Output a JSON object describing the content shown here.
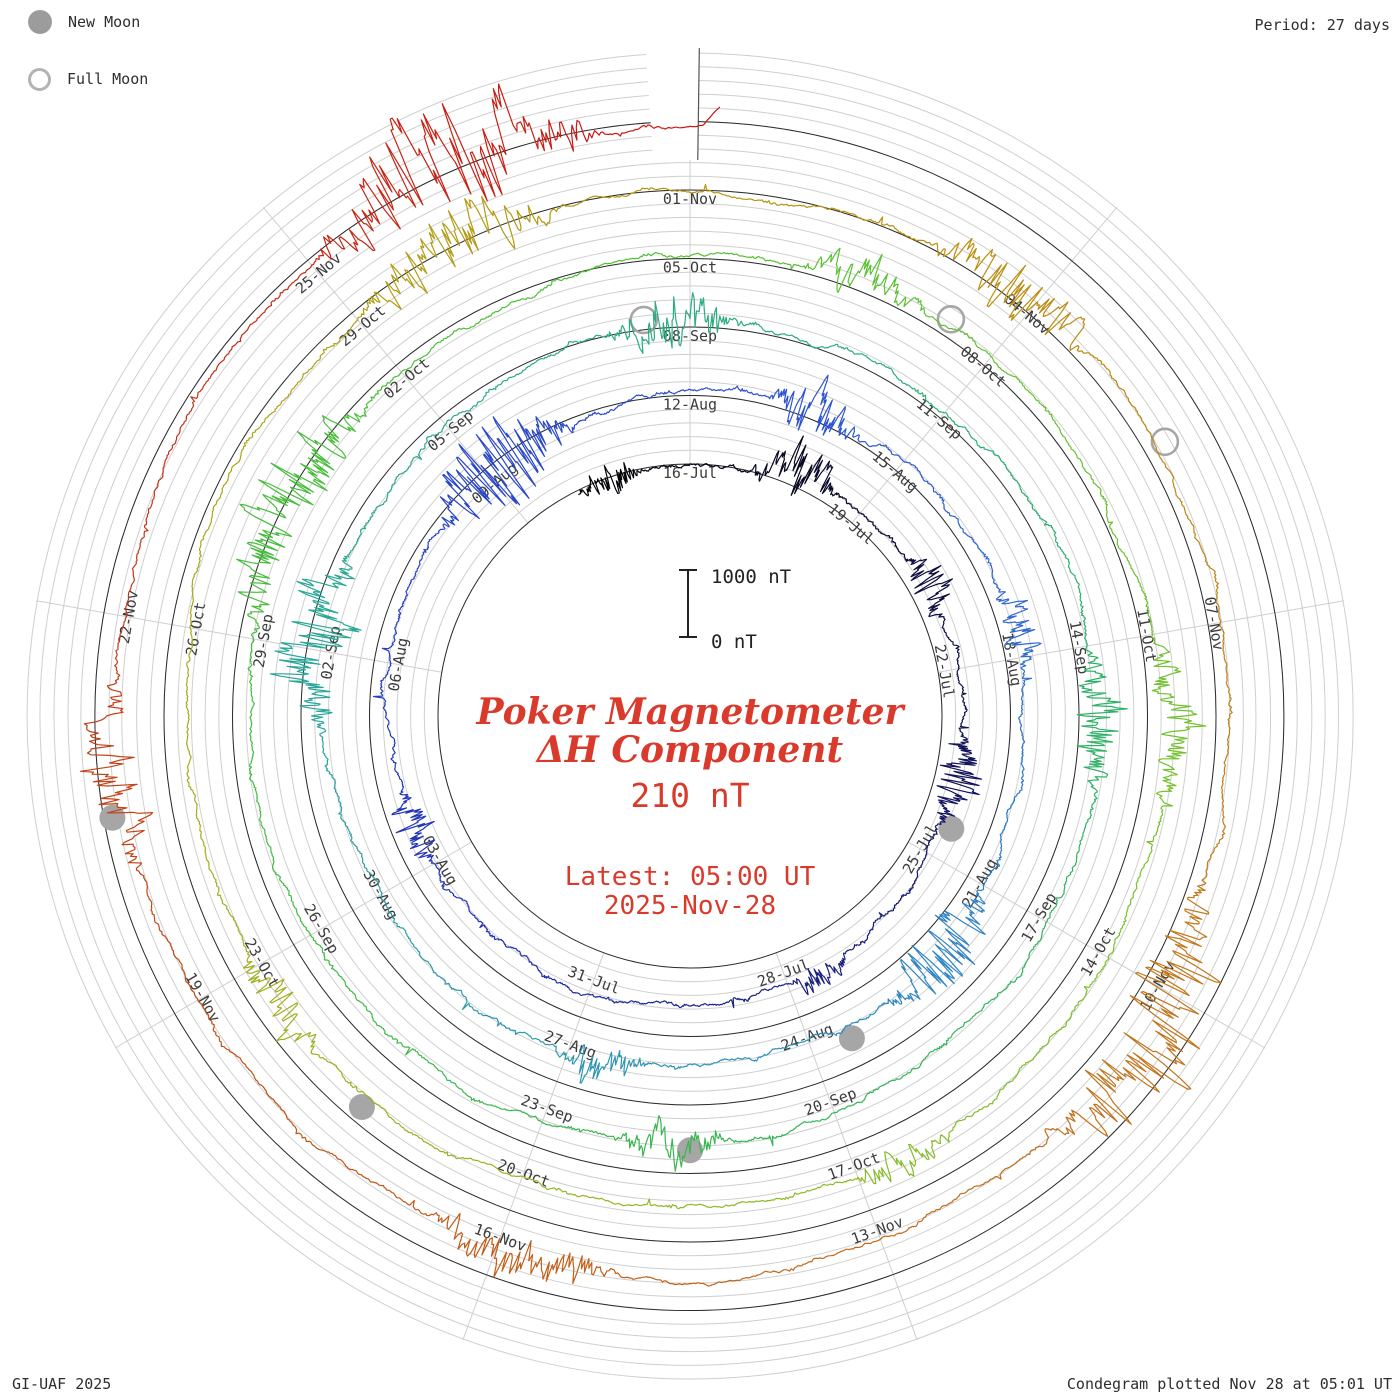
{
  "header": {
    "period": "Period: 27 days"
  },
  "legend": {
    "new_moon": "New Moon",
    "full_moon": "Full Moon"
  },
  "center": {
    "title_line1": "Poker Magnetometer",
    "title_line2": "ΔH Component",
    "current_value": "210 nT",
    "latest_line1": "Latest: 05:00 UT",
    "latest_line2": "2025-Nov-28"
  },
  "scale_bar": {
    "top": "1000 nT",
    "bottom": "0 nT"
  },
  "footer": {
    "left": "GI-UAF 2025",
    "right": "Condegram plotted Nov 28 at 05:01 UT"
  },
  "colors": {
    "text_red": "#d93a2b",
    "label_gray": "#3c3c3c",
    "grid_gray": "#cfcfcf",
    "baseline_dark": "#2b2b2b",
    "moon_gray": "#a6a6a6",
    "seam_dark": "#555555"
  },
  "chart_data": {
    "type": "line",
    "subtype": "condegram_spiral",
    "title": "Poker Magnetometer ΔH Component",
    "station": "Poker",
    "component": "ΔH",
    "units": "nT",
    "period_days": 27,
    "angle_step_deg": 40,
    "days_per_label": 3,
    "angle_zero_date": "2025-07-16",
    "start_date": "2025-07-14",
    "end_time_utc": "2025-11-28T05:00:00Z",
    "latest_value_nT": 210,
    "scale_nT_per_ring": 1000,
    "grid_minor_nT": 200,
    "revolution_start_dates": [
      "2025-07-16",
      "2025-08-12",
      "2025-09-08",
      "2025-10-05",
      "2025-11-01",
      "2025-11-28"
    ],
    "date_labels": [
      {
        "angle_deg": 0,
        "dates": [
          "16-Jul",
          "12-Aug",
          "08-Sep",
          "05-Oct",
          "01-Nov"
        ]
      },
      {
        "angle_deg": 40,
        "dates": [
          "19-Jul",
          "15-Aug",
          "11-Sep",
          "08-Oct",
          "04-Nov"
        ]
      },
      {
        "angle_deg": 80,
        "dates": [
          "22-Jul",
          "18-Aug",
          "14-Sep",
          "11-Oct",
          "07-Nov"
        ]
      },
      {
        "angle_deg": 120,
        "dates": [
          "25-Jul",
          "21-Aug",
          "17-Sep",
          "14-Oct",
          "10-Nov"
        ]
      },
      {
        "angle_deg": 160,
        "dates": [
          "28-Jul",
          "24-Aug",
          "20-Sep",
          "17-Oct",
          "13-Nov"
        ]
      },
      {
        "angle_deg": 200,
        "dates": [
          "31-Jul",
          "27-Aug",
          "23-Sep",
          "20-Oct",
          "16-Nov"
        ]
      },
      {
        "angle_deg": 240,
        "dates": [
          "03-Aug",
          "30-Aug",
          "26-Sep",
          "23-Oct",
          "19-Nov"
        ]
      },
      {
        "angle_deg": 280,
        "dates": [
          "06-Aug",
          "02-Sep",
          "29-Sep",
          "26-Oct",
          "22-Nov"
        ]
      },
      {
        "angle_deg": 320,
        "dates": [
          "09-Aug",
          "05-Sep",
          "02-Oct",
          "29-Oct",
          "25-Nov"
        ]
      }
    ],
    "moons": {
      "new_moons": [
        "2025-07-24",
        "2025-08-23",
        "2025-09-21",
        "2025-10-21",
        "2025-11-20"
      ],
      "full_moons": [
        "2025-09-07",
        "2025-10-07",
        "2025-11-05"
      ]
    },
    "color_timeline": [
      {
        "date": "2025-07-14",
        "color": "#000000"
      },
      {
        "date": "2025-07-24",
        "color": "#14145e"
      },
      {
        "date": "2025-08-02",
        "color": "#2030b8"
      },
      {
        "date": "2025-08-14",
        "color": "#2f55d2"
      },
      {
        "date": "2025-08-24",
        "color": "#2f8fbf"
      },
      {
        "date": "2025-09-03",
        "color": "#2aa893"
      },
      {
        "date": "2025-09-14",
        "color": "#2eb06a"
      },
      {
        "date": "2025-09-24",
        "color": "#3bb847"
      },
      {
        "date": "2025-10-04",
        "color": "#4fc035"
      },
      {
        "date": "2025-10-14",
        "color": "#7cc02a"
      },
      {
        "date": "2025-10-24",
        "color": "#a4ad1d"
      },
      {
        "date": "2025-11-02",
        "color": "#b9930e"
      },
      {
        "date": "2025-11-10",
        "color": "#c1761b"
      },
      {
        "date": "2025-11-17",
        "color": "#c25715"
      },
      {
        "date": "2025-11-23",
        "color": "#c23418"
      },
      {
        "date": "2025-11-28",
        "color": "#cc1410"
      }
    ],
    "disturbances": [
      {
        "date": "2025-07-14",
        "amp_nT": 260,
        "days": 1.2
      },
      {
        "date": "2025-07-17",
        "amp_nT": 380,
        "days": 1.6
      },
      {
        "date": "2025-07-20",
        "amp_nT": 300,
        "days": 1.2
      },
      {
        "date": "2025-07-23",
        "amp_nT": 330,
        "days": 1.6
      },
      {
        "date": "2025-07-27",
        "amp_nT": 240,
        "days": 1.0
      },
      {
        "date": "2025-08-03",
        "amp_nT": 260,
        "days": 1.2
      },
      {
        "date": "2025-08-08",
        "amp_nT": 620,
        "days": 2.4
      },
      {
        "date": "2025-08-13",
        "amp_nT": 340,
        "days": 1.4
      },
      {
        "date": "2025-08-17",
        "amp_nT": 260,
        "days": 1.2
      },
      {
        "date": "2025-08-21",
        "amp_nT": 430,
        "days": 2.0
      },
      {
        "date": "2025-08-26",
        "amp_nT": 280,
        "days": 1.2
      },
      {
        "date": "2025-09-01",
        "amp_nT": 560,
        "days": 2.2
      },
      {
        "date": "2025-09-07",
        "amp_nT": 410,
        "days": 1.6
      },
      {
        "date": "2025-09-14",
        "amp_nT": 380,
        "days": 1.6
      },
      {
        "date": "2025-09-21",
        "amp_nT": 300,
        "days": 1.3
      },
      {
        "date": "2025-09-29",
        "amp_nT": 520,
        "days": 2.6
      },
      {
        "date": "2025-10-06",
        "amp_nT": 300,
        "days": 1.3
      },
      {
        "date": "2025-10-11",
        "amp_nT": 350,
        "days": 1.6
      },
      {
        "date": "2025-10-16",
        "amp_nT": 240,
        "days": 1.1
      },
      {
        "date": "2025-10-22",
        "amp_nT": 290,
        "days": 1.2
      },
      {
        "date": "2025-10-29",
        "amp_nT": 460,
        "days": 2.0
      },
      {
        "date": "2025-11-03",
        "amp_nT": 430,
        "days": 1.6
      },
      {
        "date": "2025-11-09",
        "amp_nT": 660,
        "days": 2.6
      },
      {
        "date": "2025-11-15",
        "amp_nT": 380,
        "days": 1.6
      },
      {
        "date": "2025-11-20",
        "amp_nT": 400,
        "days": 1.6
      },
      {
        "date": "2025-11-25",
        "amp_nT": 760,
        "days": 2.4
      }
    ]
  }
}
